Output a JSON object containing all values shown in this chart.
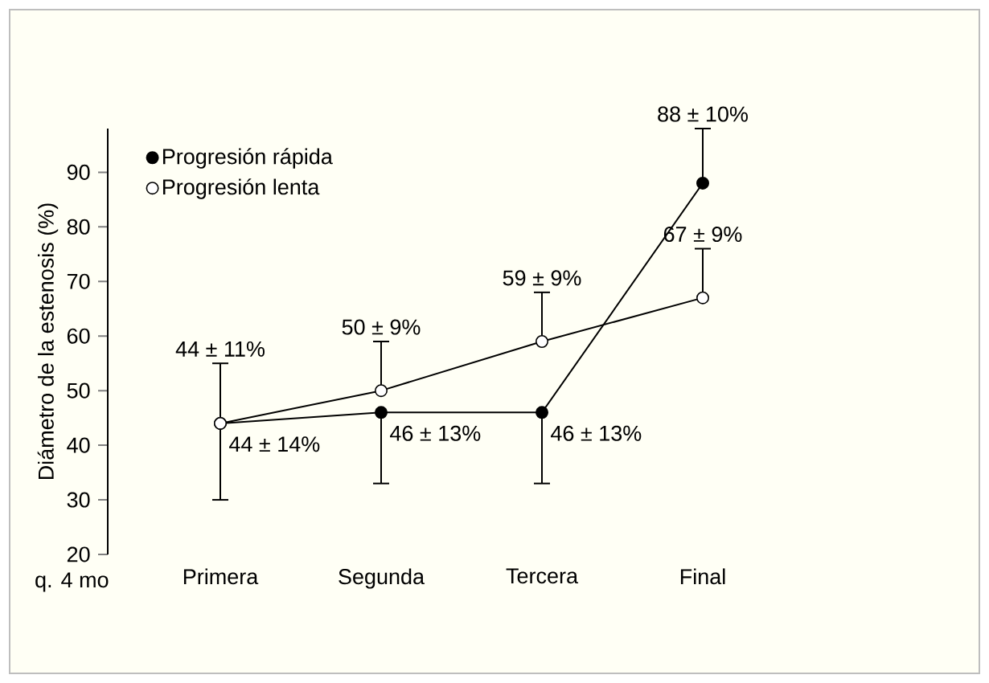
{
  "chart_data": {
    "type": "line",
    "ylabel": "Diámetro de la estenosis (%)",
    "categories": [
      "Primera",
      "Segunda",
      "Tercera",
      "Final"
    ],
    "ylim": [
      20,
      98
    ],
    "yticks": [
      20,
      30,
      40,
      50,
      60,
      70,
      80,
      90
    ],
    "legend": "top left",
    "grid": false,
    "series": [
      {
        "name": "Progresión rápida",
        "color": "#000000",
        "marker": "circle",
        "values": [
          44,
          46,
          46,
          88
        ],
        "errors": [
          [
            30,
            44
          ],
          [
            33,
            46
          ],
          [
            33,
            46
          ],
          [
            88,
            98
          ]
        ],
        "value_labels": [
          "44 ± 14%",
          "46 ± 13%",
          "46 ± 13%",
          "88 ± 10%"
        ]
      },
      {
        "name": "Progresión lenta",
        "color": "#ffffff",
        "marker": "circle",
        "values": [
          44,
          50,
          59,
          67
        ],
        "errors": [
          [
            44,
            55
          ],
          [
            50,
            59
          ],
          [
            59,
            68
          ],
          [
            67,
            76
          ]
        ],
        "value_labels": [
          "44 ± 11%",
          "50 ± 9%",
          "59 ± 9%",
          "67 ± 9%"
        ]
      }
    ],
    "annotations": [
      "q. 4 mo"
    ]
  }
}
